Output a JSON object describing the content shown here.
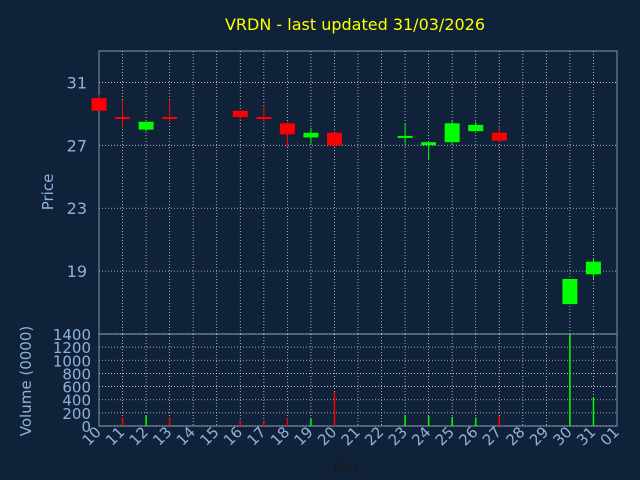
{
  "chart_data": [
    {
      "type": "candlestick",
      "title": "VRDN - last updated 31/03/2026",
      "ylabel": "Price",
      "ylim": [
        15,
        33
      ],
      "yticks": [
        19,
        23,
        27,
        31
      ],
      "up_color": "#00ff00",
      "down_color": "#ff0000",
      "grid": true,
      "candles": [
        {
          "day": "10",
          "open": 30.0,
          "high": 30.2,
          "low": 29.2,
          "close": 29.2
        },
        {
          "day": "11",
          "open": 28.8,
          "high": 29.9,
          "low": 28.1,
          "close": 28.7
        },
        {
          "day": "12",
          "open": 28.0,
          "high": 28.5,
          "low": 27.9,
          "close": 28.5
        },
        {
          "day": "13",
          "open": 28.8,
          "high": 29.9,
          "low": 28.5,
          "close": 28.7
        },
        {
          "day": "16",
          "open": 29.2,
          "high": 29.2,
          "low": 28.6,
          "close": 28.8
        },
        {
          "day": "17",
          "open": 28.8,
          "high": 29.5,
          "low": 28.5,
          "close": 28.7
        },
        {
          "day": "18",
          "open": 28.4,
          "high": 28.5,
          "low": 26.9,
          "close": 27.7
        },
        {
          "day": "19",
          "open": 27.5,
          "high": 28.1,
          "low": 27.1,
          "close": 27.8
        },
        {
          "day": "20",
          "open": 27.8,
          "high": 27.8,
          "low": 26.9,
          "close": 27.0
        },
        {
          "day": "23",
          "open": 27.5,
          "high": 28.4,
          "low": 27.1,
          "close": 27.6
        },
        {
          "day": "24",
          "open": 27.0,
          "high": 27.2,
          "low": 26.1,
          "close": 27.2
        },
        {
          "day": "25",
          "open": 27.2,
          "high": 28.6,
          "low": 27.1,
          "close": 28.4
        },
        {
          "day": "26",
          "open": 27.9,
          "high": 28.5,
          "low": 27.9,
          "close": 28.3
        },
        {
          "day": "27",
          "open": 27.8,
          "high": 28.2,
          "low": 27.2,
          "close": 27.3
        },
        {
          "day": "30",
          "open": 16.9,
          "high": 18.5,
          "low": 16.9,
          "close": 18.5
        },
        {
          "day": "31",
          "open": 18.8,
          "high": 19.8,
          "low": 18.5,
          "close": 19.6
        }
      ]
    },
    {
      "type": "bar",
      "xlabel": "Day",
      "ylabel": "Volume (0000)",
      "ylim": [
        0,
        1400
      ],
      "yticks": [
        0,
        200,
        400,
        600,
        800,
        1000,
        1200,
        1400
      ],
      "categories": [
        "10",
        "11",
        "12",
        "13",
        "14",
        "15",
        "16",
        "17",
        "18",
        "19",
        "20",
        "21",
        "22",
        "23",
        "24",
        "25",
        "26",
        "27",
        "28",
        "29",
        "30",
        "31",
        "01"
      ],
      "values": [
        null,
        130,
        160,
        130,
        null,
        null,
        90,
        70,
        120,
        110,
        520,
        null,
        null,
        170,
        150,
        140,
        130,
        150,
        null,
        null,
        1400,
        430,
        null
      ],
      "bar_colors": [
        null,
        "#ff0000",
        "#00ff00",
        "#ff0000",
        null,
        null,
        "#ff0000",
        "#ff0000",
        "#ff0000",
        "#00ff00",
        "#ff0000",
        null,
        null,
        "#00ff00",
        "#00ff00",
        "#00ff00",
        "#00ff00",
        "#ff0000",
        null,
        null,
        "#00ff00",
        "#00ff00",
        null
      ],
      "grid": true
    }
  ]
}
